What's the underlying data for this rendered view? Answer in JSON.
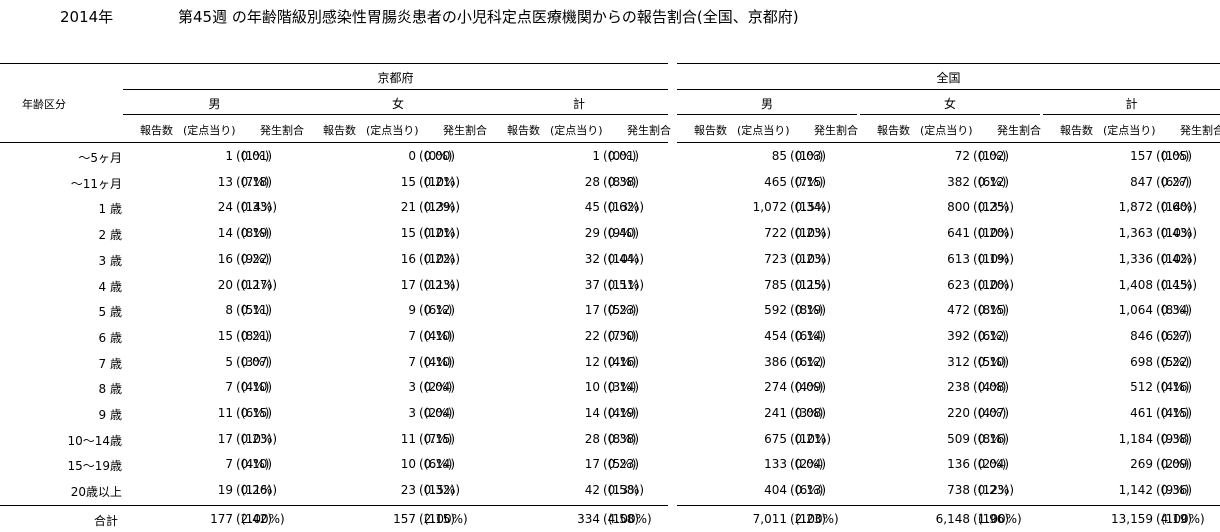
{
  "header": {
    "year": "2014年",
    "title": "第45週 の年齢階級別感染性胃腸炎患者の小児科定点医療機関からの報告割合(全国、京都府)"
  },
  "table": {
    "age_header": "年齢区分",
    "groups": [
      "京都府",
      "全国"
    ],
    "sexes": [
      "男",
      "女",
      "計",
      "男",
      "女",
      "計"
    ],
    "sub_headers": {
      "reports": "報告数",
      "per_site": "(定点当り)",
      "ratio": "発生割合"
    },
    "rows": [
      {
        "age": "〜5ヶ月",
        "cells": [
          [
            "1",
            "(0.01)",
            "(1%)"
          ],
          [
            "0",
            "(0.00)",
            "(0%)"
          ],
          [
            "1",
            "(0.01)",
            "(0%)"
          ],
          [
            "85",
            "(0.03)",
            "(1%)"
          ],
          [
            "72",
            "(0.02)",
            "(1%)"
          ],
          [
            "157",
            "(0.05)",
            "(1%)"
          ]
        ]
      },
      {
        "age": "〜11ヶ月",
        "cells": [
          [
            "13",
            "(0.18)",
            "(7%)"
          ],
          [
            "15",
            "(0.21)",
            "(10%)"
          ],
          [
            "28",
            "(0.38)",
            "(8%)"
          ],
          [
            "465",
            "(0.15)",
            "(7%)"
          ],
          [
            "382",
            "(0.12)",
            "(6%)"
          ],
          [
            "847",
            "(0.27)",
            "(6%)"
          ]
        ]
      },
      {
        "age": "1 歳",
        "cells": [
          [
            "24",
            "(0.33)",
            "(14%)"
          ],
          [
            "21",
            "(0.29)",
            "(13%)"
          ],
          [
            "45",
            "(0.62)",
            "(13%)"
          ],
          [
            "1,072",
            "(0.34)",
            "(15%)"
          ],
          [
            "800",
            "(0.25)",
            "(13%)"
          ],
          [
            "1,872",
            "(0.60)",
            "(14%)"
          ]
        ]
      },
      {
        "age": "2 歳",
        "cells": [
          [
            "14",
            "(0.19)",
            "(8%)"
          ],
          [
            "15",
            "(0.21)",
            "(10%)"
          ],
          [
            "29",
            "(0.40)",
            "(9%)"
          ],
          [
            "722",
            "(0.23)",
            "(10%)"
          ],
          [
            "641",
            "(0.20)",
            "(10%)"
          ],
          [
            "1,363",
            "(0.43)",
            "(10%)"
          ]
        ]
      },
      {
        "age": "3 歳",
        "cells": [
          [
            "16",
            "(0.22)",
            "(9%)"
          ],
          [
            "16",
            "(0.22)",
            "(10%)"
          ],
          [
            "32",
            "(0.44)",
            "(10%)"
          ],
          [
            "723",
            "(0.23)",
            "(10%)"
          ],
          [
            "613",
            "(0.19)",
            "(10%)"
          ],
          [
            "1,336",
            "(0.42)",
            "(10%)"
          ]
        ]
      },
      {
        "age": "4 歳",
        "cells": [
          [
            "20",
            "(0.27)",
            "(11%)"
          ],
          [
            "17",
            "(0.23)",
            "(11%)"
          ],
          [
            "37",
            "(0.51)",
            "(11%)"
          ],
          [
            "785",
            "(0.25)",
            "(11%)"
          ],
          [
            "623",
            "(0.20)",
            "(10%)"
          ],
          [
            "1,408",
            "(0.45)",
            "(11%)"
          ]
        ]
      },
      {
        "age": "5 歳",
        "cells": [
          [
            "8",
            "(0.11)",
            "(5%)"
          ],
          [
            "9",
            "(0.12)",
            "(6%)"
          ],
          [
            "17",
            "(0.23)",
            "(5%)"
          ],
          [
            "592",
            "(0.19)",
            "(8%)"
          ],
          [
            "472",
            "(0.15)",
            "(8%)"
          ],
          [
            "1,064",
            "(0.34)",
            "(8%)"
          ]
        ]
      },
      {
        "age": "6 歳",
        "cells": [
          [
            "15",
            "(0.21)",
            "(8%)"
          ],
          [
            "7",
            "(0.10)",
            "(4%)"
          ],
          [
            "22",
            "(0.30)",
            "(7%)"
          ],
          [
            "454",
            "(0.14)",
            "(6%)"
          ],
          [
            "392",
            "(0.12)",
            "(6%)"
          ],
          [
            "846",
            "(0.27)",
            "(6%)"
          ]
        ]
      },
      {
        "age": "7 歳",
        "cells": [
          [
            "5",
            "(0.07)",
            "(3%)"
          ],
          [
            "7",
            "(0.10)",
            "(4%)"
          ],
          [
            "12",
            "(0.16)",
            "(4%)"
          ],
          [
            "386",
            "(0.12)",
            "(6%)"
          ],
          [
            "312",
            "(0.10)",
            "(5%)"
          ],
          [
            "698",
            "(0.22)",
            "(5%)"
          ]
        ]
      },
      {
        "age": "8 歳",
        "cells": [
          [
            "7",
            "(0.10)",
            "(4%)"
          ],
          [
            "3",
            "(0.04)",
            "(2%)"
          ],
          [
            "10",
            "(0.14)",
            "(3%)"
          ],
          [
            "274",
            "(0.09)",
            "(4%)"
          ],
          [
            "238",
            "(0.08)",
            "(4%)"
          ],
          [
            "512",
            "(0.16)",
            "(4%)"
          ]
        ]
      },
      {
        "age": "9 歳",
        "cells": [
          [
            "11",
            "(0.15)",
            "(6%)"
          ],
          [
            "3",
            "(0.04)",
            "(2%)"
          ],
          [
            "14",
            "(0.19)",
            "(4%)"
          ],
          [
            "241",
            "(0.08)",
            "(3%)"
          ],
          [
            "220",
            "(0.07)",
            "(4%)"
          ],
          [
            "461",
            "(0.15)",
            "(4%)"
          ]
        ]
      },
      {
        "age": "10〜14歳",
        "cells": [
          [
            "17",
            "(0.23)",
            "(10%)"
          ],
          [
            "11",
            "(0.15)",
            "(7%)"
          ],
          [
            "28",
            "(0.38)",
            "(8%)"
          ],
          [
            "675",
            "(0.21)",
            "(10%)"
          ],
          [
            "509",
            "(0.16)",
            "(8%)"
          ],
          [
            "1,184",
            "(0.38)",
            "(9%)"
          ]
        ]
      },
      {
        "age": "15〜19歳",
        "cells": [
          [
            "7",
            "(0.10)",
            "(4%)"
          ],
          [
            "10",
            "(0.14)",
            "(6%)"
          ],
          [
            "17",
            "(0.23)",
            "(5%)"
          ],
          [
            "133",
            "(0.04)",
            "(2%)"
          ],
          [
            "136",
            "(0.04)",
            "(2%)"
          ],
          [
            "269",
            "(0.09)",
            "(2%)"
          ]
        ]
      },
      {
        "age": "20歳以上",
        "cells": [
          [
            "19",
            "(0.26)",
            "(11%)"
          ],
          [
            "23",
            "(0.32)",
            "(15%)"
          ],
          [
            "42",
            "(0.58)",
            "(13%)"
          ],
          [
            "404",
            "(0.13)",
            "(6%)"
          ],
          [
            "738",
            "(0.23)",
            "(12%)"
          ],
          [
            "1,142",
            "(0.36)",
            "(9%)"
          ]
        ]
      }
    ],
    "total": {
      "age": "合計",
      "cells": [
        [
          "177",
          "(2.42)",
          "(100%)"
        ],
        [
          "157",
          "(2.15)",
          "(100%)"
        ],
        [
          "334",
          "(4.58)",
          "(100%)"
        ],
        [
          "7,011",
          "(2.23)",
          "(100%)"
        ],
        [
          "6,148",
          "(1.96)",
          "(100%)"
        ],
        [
          "13,159",
          "(4.19)",
          "(100%)"
        ]
      ]
    }
  }
}
